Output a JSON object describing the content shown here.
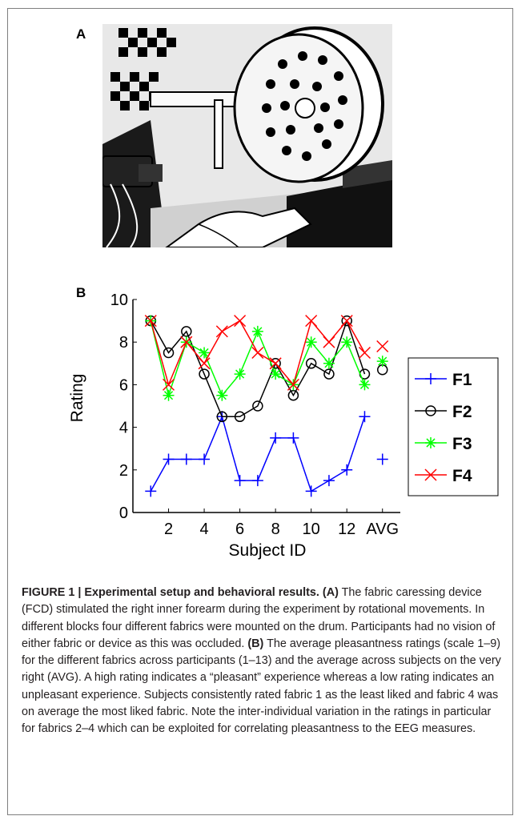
{
  "figure": {
    "panel_a_label": "A",
    "panel_b_label": "B",
    "caption": {
      "heading": "FIGURE 1 | Experimental setup and behavioral results.",
      "a_marker": "(A)",
      "a_text": "The fabric caressing device (FCD) stimulated the right inner forearm during the experiment by rotational movements. In different blocks four different fabrics were mounted on the drum. Participants had no vision of either fabric or device as this was occluded.",
      "b_marker": "(B)",
      "b_text": "The average pleasantness ratings (scale 1–9) for the different fabrics across participants (1–13) and the average across subjects on the very right (AVG). A high rating indicates a “pleasant” experience whereas a low rating indicates an unpleasant experience. Subjects consistently rated fabric 1 as the least liked and fabric 4 was on average the most liked fabric. Note the inter-individual variation in the ratings in particular for fabrics 2–4 which can be exploited for correlating pleasantness to the EEG measures."
    }
  },
  "chart_data": {
    "type": "line",
    "title": "",
    "xlabel": "Subject ID",
    "ylabel": "Rating",
    "ylim": [
      0,
      10
    ],
    "xlim": [
      0,
      15
    ],
    "yticks": [
      0,
      2,
      4,
      6,
      8,
      10
    ],
    "xticks": [
      {
        "x": 2,
        "label": "2"
      },
      {
        "x": 4,
        "label": "4"
      },
      {
        "x": 6,
        "label": "6"
      },
      {
        "x": 8,
        "label": "8"
      },
      {
        "x": 10,
        "label": "10"
      },
      {
        "x": 12,
        "label": "12"
      },
      {
        "x": 14,
        "label": "AVG"
      }
    ],
    "grid": false,
    "legend_position": "outside-right",
    "x": [
      1,
      2,
      3,
      4,
      5,
      6,
      7,
      8,
      9,
      10,
      11,
      12,
      13
    ],
    "series": [
      {
        "name": "F1",
        "color": "#0000ff",
        "marker": "plus",
        "values": [
          1.0,
          2.5,
          2.5,
          2.5,
          4.5,
          1.5,
          1.5,
          3.5,
          3.5,
          1.0,
          1.5,
          2.0,
          4.5
        ],
        "avg": 2.5
      },
      {
        "name": "F2",
        "color": "#000000",
        "marker": "circle",
        "values": [
          9.0,
          7.5,
          8.5,
          6.5,
          4.5,
          4.5,
          5.0,
          7.0,
          5.5,
          7.0,
          6.5,
          9.0,
          6.5
        ],
        "avg": 6.7
      },
      {
        "name": "F3",
        "color": "#00ff00",
        "marker": "star",
        "values": [
          9.0,
          5.5,
          8.0,
          7.5,
          5.5,
          6.5,
          8.5,
          6.5,
          6.0,
          8.0,
          7.0,
          8.0,
          6.0
        ],
        "avg": 7.1
      },
      {
        "name": "F4",
        "color": "#ff0000",
        "marker": "x",
        "values": [
          9.0,
          6.0,
          8.0,
          7.0,
          8.5,
          9.0,
          7.5,
          7.0,
          6.0,
          9.0,
          8.0,
          9.0,
          7.5
        ],
        "avg": 7.8
      }
    ]
  }
}
